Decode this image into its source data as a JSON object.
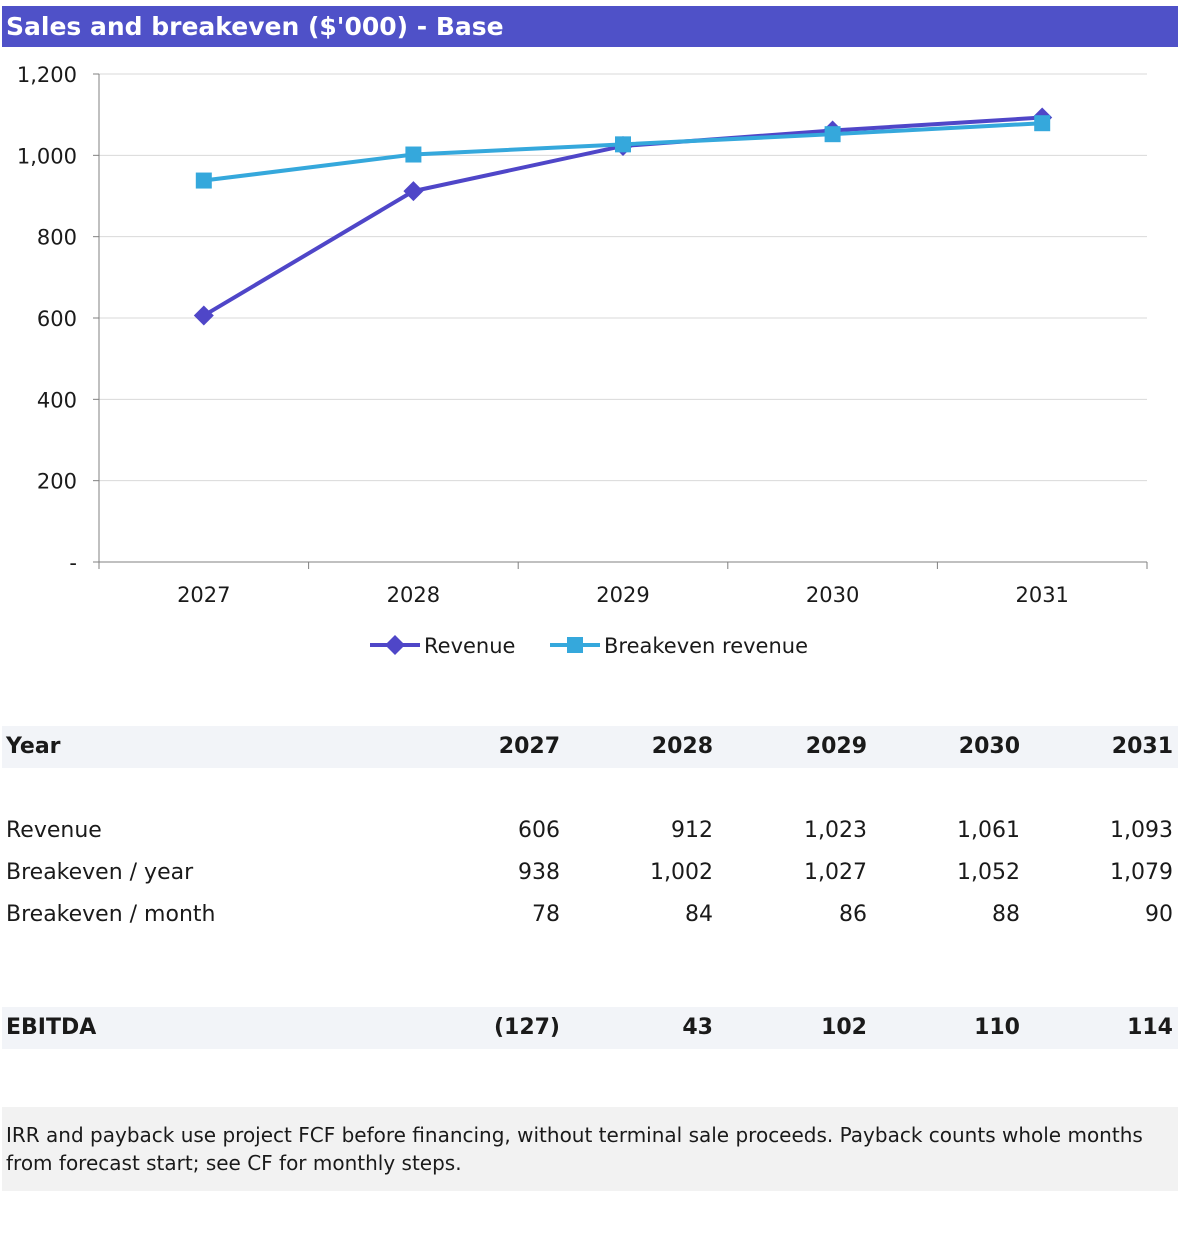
{
  "title": "Sales and breakeven ($'000) - Base",
  "chart_data": {
    "type": "line",
    "title": "Sales and breakeven ($'000) - Base",
    "categories": [
      "2027",
      "2028",
      "2029",
      "2030",
      "2031"
    ],
    "ylim": [
      0,
      1200
    ],
    "yticks": [
      0,
      200,
      400,
      600,
      800,
      1000,
      1200
    ],
    "ytick_labels": [
      "-",
      "200",
      "400",
      "600",
      "800",
      "1,000",
      "1,200"
    ],
    "grid": true,
    "legend": "bottom",
    "series": [
      {
        "name": "Revenue",
        "values": [
          606,
          912,
          1023,
          1061,
          1093
        ],
        "color": "#4F46C8",
        "marker": "diamond"
      },
      {
        "name": "Breakeven revenue",
        "values": [
          938,
          1002,
          1027,
          1052,
          1079
        ],
        "color": "#35A8DC",
        "marker": "square"
      }
    ]
  },
  "table": {
    "header": {
      "label": "Year",
      "values": [
        "2027",
        "2028",
        "2029",
        "2030",
        "2031"
      ]
    },
    "rows": [
      {
        "label": "Revenue",
        "values": [
          "606",
          "912",
          "1,023",
          "1,061",
          "1,093"
        ]
      },
      {
        "label": "Breakeven / year",
        "values": [
          "938",
          "1,002",
          "1,027",
          "1,052",
          "1,079"
        ]
      },
      {
        "label": "Breakeven / month",
        "values": [
          "78",
          "84",
          "86",
          "88",
          "90"
        ]
      }
    ],
    "ebitda": {
      "label": "EBITDA",
      "values": [
        "(127)",
        "43",
        "102",
        "110",
        "114"
      ]
    }
  },
  "note": "IRR and payback use project FCF before financing, without terminal sale proceeds. Payback counts whole months from forecast start; see CF for monthly steps."
}
